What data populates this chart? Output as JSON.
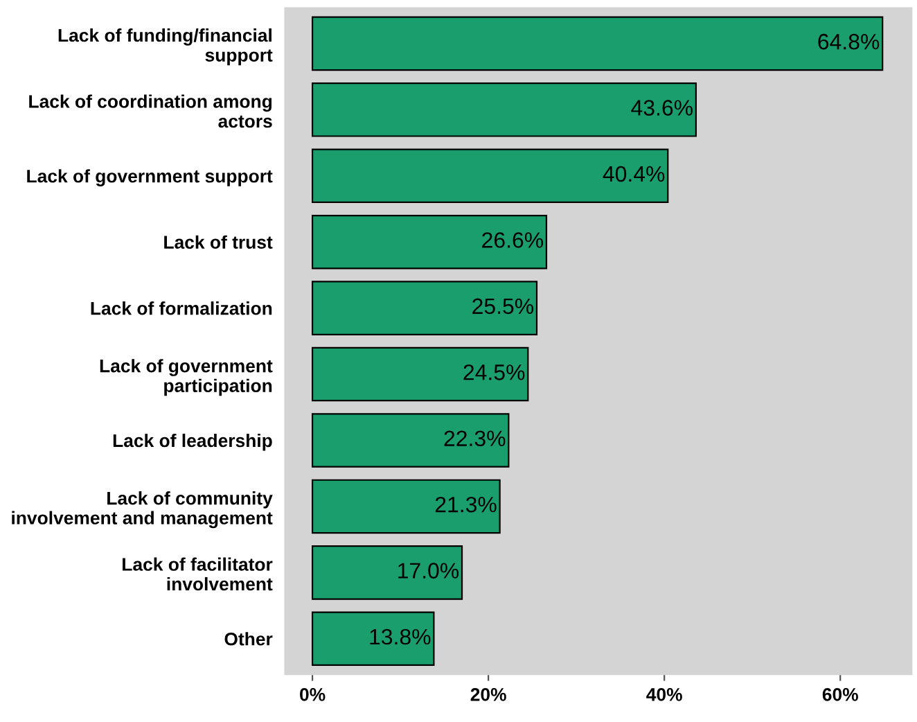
{
  "chart_data": {
    "type": "bar",
    "orientation": "horizontal",
    "categories": [
      "Lack of funding/financial\nsupport",
      "Lack of coordination among\nactors",
      "Lack of government support",
      "Lack of trust",
      "Lack of formalization",
      "Lack of government\nparticipation",
      "Lack of leadership",
      "Lack of community\ninvolvement and management",
      "Lack of facilitator\ninvolvement",
      "Other"
    ],
    "values": [
      64.8,
      43.6,
      40.4,
      26.6,
      25.5,
      24.5,
      22.3,
      21.3,
      17.0,
      13.8
    ],
    "value_labels": [
      "64.8%",
      "43.6%",
      "40.4%",
      "26.6%",
      "25.5%",
      "24.5%",
      "22.3%",
      "21.3%",
      "17.0%",
      "13.8%"
    ],
    "color": "#1b9e6e",
    "xlim": [
      -3.2,
      68.2
    ],
    "xticks": [
      {
        "value": 0,
        "label": "0%"
      },
      {
        "value": 20,
        "label": "20%"
      },
      {
        "value": 40,
        "label": "40%"
      },
      {
        "value": 60,
        "label": "60%"
      }
    ],
    "grid": false,
    "legend": false
  }
}
